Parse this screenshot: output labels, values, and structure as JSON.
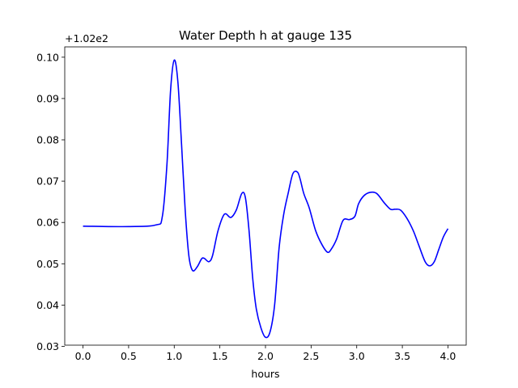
{
  "chart_data": {
    "type": "line",
    "title": "Water Depth h at gauge 135",
    "xlabel": "hours",
    "ylabel": "",
    "y_offset_label": "+1.02e2",
    "xlim": [
      -0.2,
      4.2
    ],
    "ylim": [
      0.0303,
      0.1025
    ],
    "x_ticks": [
      0.0,
      0.5,
      1.0,
      1.5,
      2.0,
      2.5,
      3.0,
      3.5,
      4.0
    ],
    "x_tick_labels": [
      "0.0",
      "0.5",
      "1.0",
      "1.5",
      "2.0",
      "2.5",
      "3.0",
      "3.5",
      "4.0"
    ],
    "y_ticks": [
      0.03,
      0.04,
      0.05,
      0.06,
      0.07,
      0.08,
      0.09,
      0.1
    ],
    "y_tick_labels": [
      "0.03",
      "0.04",
      "0.05",
      "0.06",
      "0.07",
      "0.08",
      "0.09",
      "0.10"
    ],
    "grid": false,
    "series": [
      {
        "color": "#0000ff",
        "x": [
          0.0,
          0.5,
          0.8,
          0.87,
          0.92,
          0.96,
          1.0,
          1.04,
          1.08,
          1.12,
          1.16,
          1.2,
          1.25,
          1.3,
          1.33,
          1.38,
          1.42,
          1.48,
          1.55,
          1.62,
          1.68,
          1.74,
          1.78,
          1.82,
          1.86,
          1.9,
          1.95,
          2.0,
          2.05,
          2.1,
          2.15,
          2.2,
          2.25,
          2.3,
          2.35,
          2.38,
          2.42,
          2.48,
          2.55,
          2.62,
          2.68,
          2.72,
          2.78,
          2.85,
          2.92,
          2.98,
          3.02,
          3.08,
          3.15,
          3.22,
          3.3,
          3.37,
          3.42,
          3.48,
          3.55,
          3.62,
          3.68,
          3.75,
          3.8,
          3.85,
          3.9,
          3.95,
          4.0
        ],
        "y": [
          0.0591,
          0.059,
          0.0594,
          0.0615,
          0.074,
          0.092,
          0.0993,
          0.094,
          0.079,
          0.063,
          0.052,
          0.0484,
          0.0492,
          0.0512,
          0.0513,
          0.0505,
          0.052,
          0.058,
          0.062,
          0.0612,
          0.063,
          0.067,
          0.066,
          0.058,
          0.0465,
          0.039,
          0.0345,
          0.0322,
          0.0335,
          0.04,
          0.054,
          0.062,
          0.0672,
          0.0718,
          0.0722,
          0.0705,
          0.067,
          0.0635,
          0.058,
          0.0546,
          0.0528,
          0.0535,
          0.056,
          0.0605,
          0.0607,
          0.0615,
          0.0645,
          0.0665,
          0.0673,
          0.067,
          0.0648,
          0.0632,
          0.0632,
          0.063,
          0.061,
          0.058,
          0.0545,
          0.0505,
          0.0495,
          0.0505,
          0.0535,
          0.0565,
          0.0585
        ]
      }
    ]
  }
}
